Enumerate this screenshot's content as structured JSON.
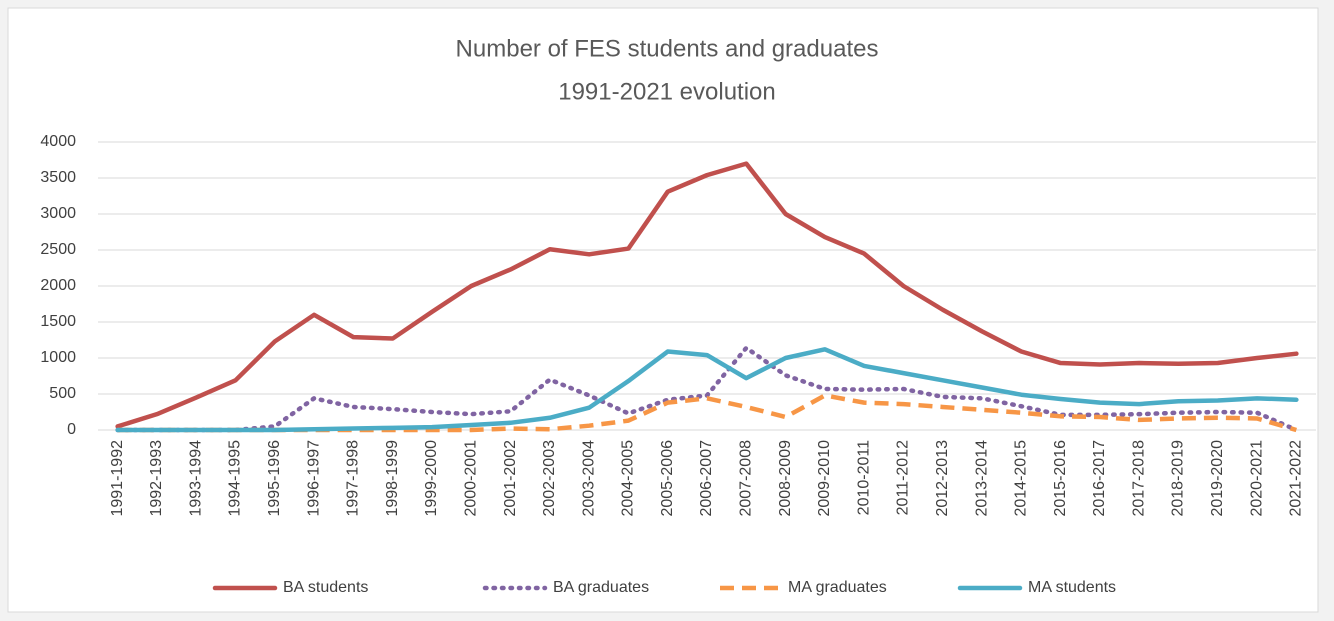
{
  "chart_data": {
    "type": "line",
    "title": "Number of FES students and graduates",
    "subtitle": "1991-2021 evolution",
    "categories": [
      "1991-1992",
      "1992-1993",
      "1993-1994",
      "1994-1995",
      "1995-1996",
      "1996-1997",
      "1997-1998",
      "1998-1999",
      "1999-2000",
      "2000-2001",
      "2001-2002",
      "2002-2003",
      "2003-2004",
      "2004-2005",
      "2005-2006",
      "2006-2007",
      "2007-2008",
      "2008-2009",
      "2009-2010",
      "2010-2011",
      "2011-2012",
      "2012-2013",
      "2013-2014",
      "2014-2015",
      "2015-2016",
      "2016-2017",
      "2017-2018",
      "2018-2019",
      "2019-2020",
      "2020-2021",
      "2021-2022"
    ],
    "series": [
      {
        "name": "BA students",
        "color": "#c0504d",
        "dash": "solid",
        "values": [
          50,
          220,
          450,
          690,
          1230,
          1600,
          1290,
          1270,
          1640,
          2000,
          2230,
          2510,
          2440,
          2520,
          3310,
          3540,
          3700,
          3000,
          2680,
          2450,
          2000,
          1670,
          1370,
          1090,
          930,
          910,
          930,
          920,
          930,
          1000,
          1060
        ]
      },
      {
        "name": "BA graduates",
        "color": "#8064a2",
        "dash": "dotted",
        "values": [
          0,
          0,
          0,
          0,
          50,
          440,
          320,
          290,
          250,
          220,
          260,
          700,
          480,
          230,
          420,
          480,
          1140,
          760,
          570,
          560,
          570,
          460,
          440,
          330,
          210,
          210,
          220,
          240,
          250,
          240,
          0
        ]
      },
      {
        "name": "MA graduates",
        "color": "#f79646",
        "dash": "dashed",
        "values": [
          0,
          0,
          0,
          0,
          0,
          0,
          0,
          0,
          0,
          0,
          20,
          10,
          60,
          130,
          380,
          440,
          320,
          180,
          480,
          380,
          360,
          320,
          280,
          240,
          190,
          180,
          140,
          160,
          170,
          160,
          0
        ]
      },
      {
        "name": "MA students",
        "color": "#4bacc6",
        "dash": "solid",
        "values": [
          0,
          0,
          0,
          0,
          0,
          10,
          20,
          30,
          40,
          70,
          100,
          170,
          310,
          680,
          1090,
          1040,
          720,
          1000,
          1120,
          890,
          790,
          690,
          590,
          490,
          430,
          380,
          360,
          400,
          410,
          440,
          420
        ]
      }
    ],
    "ylim": [
      0,
      4000
    ],
    "yticks": [
      0,
      500,
      1000,
      1500,
      2000,
      2500,
      3000,
      3500,
      4000
    ],
    "grid": true,
    "legend": "bottom"
  }
}
